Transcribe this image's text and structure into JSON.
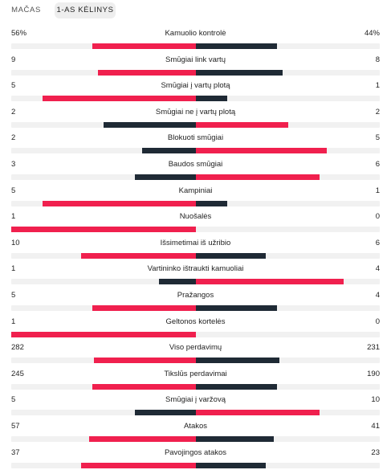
{
  "tabs": [
    {
      "label": "Mačas",
      "active": false
    },
    {
      "label": "1-as kėlinys",
      "active": true
    }
  ],
  "colors": {
    "home": "#f0204e",
    "away": "#1f2a35",
    "track": "#f1f1f1"
  },
  "stats": [
    {
      "label": "Kamuolio kontrolė",
      "home": "56%",
      "away": "44%",
      "home_share": 0.56,
      "away_share": 0.44,
      "leader": "home"
    },
    {
      "label": "Smūgiai link vartų",
      "home": "9",
      "away": "8",
      "home_share": 0.53,
      "away_share": 0.47,
      "leader": "home"
    },
    {
      "label": "Smūgiai į vartų plotą",
      "home": "5",
      "away": "1",
      "home_share": 0.83,
      "away_share": 0.17,
      "leader": "home"
    },
    {
      "label": "Smūgiai ne į vartų plotą",
      "home": "2",
      "away": "2",
      "home_share": 0.5,
      "away_share": 0.5,
      "leader": "away"
    },
    {
      "label": "Blokuoti smūgiai",
      "home": "2",
      "away": "5",
      "home_share": 0.29,
      "away_share": 0.71,
      "leader": "away"
    },
    {
      "label": "Baudos smūgiai",
      "home": "3",
      "away": "6",
      "home_share": 0.33,
      "away_share": 0.67,
      "leader": "away"
    },
    {
      "label": "Kampiniai",
      "home": "5",
      "away": "1",
      "home_share": 0.83,
      "away_share": 0.17,
      "leader": "home"
    },
    {
      "label": "Nuošalės",
      "home": "1",
      "away": "0",
      "home_share": 1.0,
      "away_share": 0.0,
      "leader": "home"
    },
    {
      "label": "Išsimetimai iš užribio",
      "home": "10",
      "away": "6",
      "home_share": 0.62,
      "away_share": 0.38,
      "leader": "home"
    },
    {
      "label": "Vartininko ištraukti kamuoliai",
      "home": "1",
      "away": "4",
      "home_share": 0.2,
      "away_share": 0.8,
      "leader": "away"
    },
    {
      "label": "Pražangos",
      "home": "5",
      "away": "4",
      "home_share": 0.56,
      "away_share": 0.44,
      "leader": "home"
    },
    {
      "label": "Geltonos kortelės",
      "home": "1",
      "away": "0",
      "home_share": 1.0,
      "away_share": 0.0,
      "leader": "home"
    },
    {
      "label": "Viso perdavimų",
      "home": "282",
      "away": "231",
      "home_share": 0.55,
      "away_share": 0.45,
      "leader": "home"
    },
    {
      "label": "Tikslūs perdavimai",
      "home": "245",
      "away": "190",
      "home_share": 0.56,
      "away_share": 0.44,
      "leader": "home"
    },
    {
      "label": "Smūgiai į varžovą",
      "home": "5",
      "away": "10",
      "home_share": 0.33,
      "away_share": 0.67,
      "leader": "away"
    },
    {
      "label": "Atakos",
      "home": "57",
      "away": "41",
      "home_share": 0.58,
      "away_share": 0.42,
      "leader": "home"
    },
    {
      "label": "Pavojingos atakos",
      "home": "37",
      "away": "23",
      "home_share": 0.62,
      "away_share": 0.38,
      "leader": "home"
    }
  ]
}
